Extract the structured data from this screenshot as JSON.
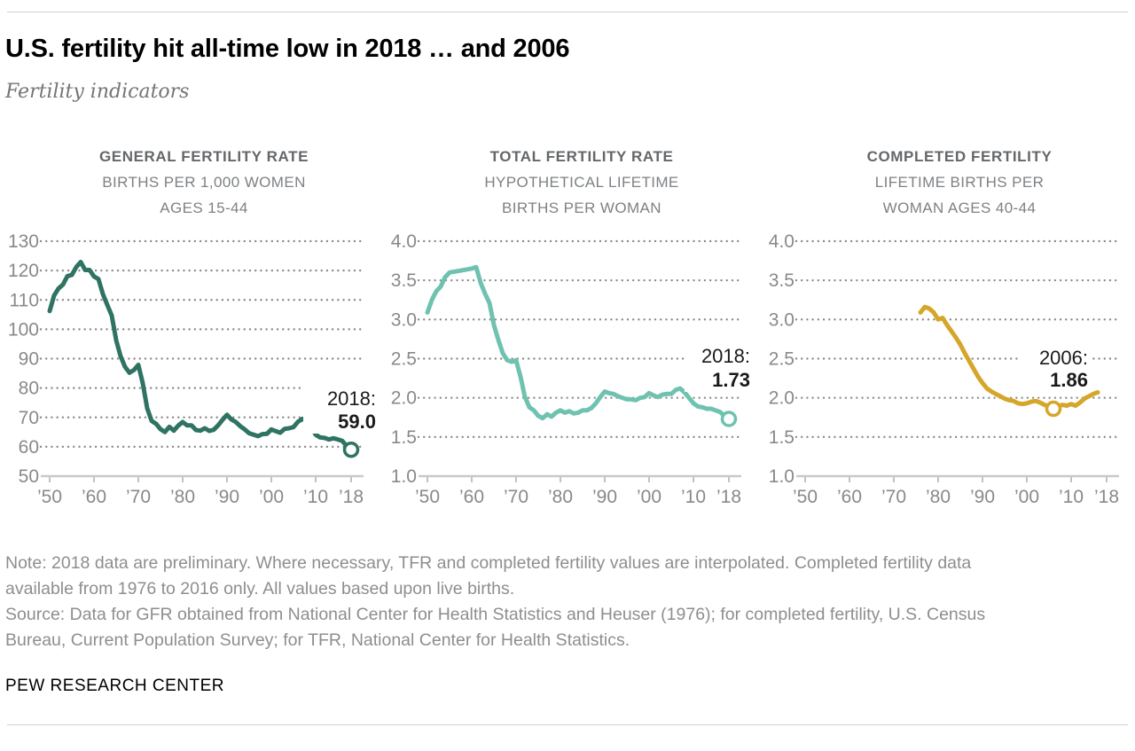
{
  "page": {
    "title": "U.S. fertility hit all-time low in 2018 … and 2006",
    "subtitle": "Fertility indicators",
    "note": "Note: 2018 data are preliminary. Where necessary, TFR and completed fertility values are interpolated. Completed fertility data available from 1976 to 2016 only. All values based upon live births.",
    "source": "Source: Data for GFR obtained from National Center for Health Statistics and Heuser (1976); for completed fertility, U.S. Census Bureau, Current Population Survey; for TFR, National Center for Health Statistics.",
    "footer": "PEW RESEARCH CENTER"
  },
  "colors": {
    "gfr_line": "#2F7363",
    "tfr_line": "#6FC2AF",
    "completed_line": "#D5A629",
    "gridline_dots": "#8a8a8a",
    "axis_line": "#c9c9c9",
    "tick_mark": "#c2c2c2",
    "tick_text": "#87898c",
    "annotation_text": "#1a1a1a"
  },
  "chart_data": [
    {
      "type": "line",
      "id": "gfr",
      "title_lines": [
        "GENERAL FERTILITY RATE",
        "BIRTHS PER 1,000 WOMEN",
        "AGES 15-44"
      ],
      "color": "#2F7363",
      "ylim": [
        50,
        130
      ],
      "grid": "dotted-horizontal",
      "legend": "none",
      "yticks": [
        {
          "v": 130,
          "label": "130"
        },
        {
          "v": 120,
          "label": "120"
        },
        {
          "v": 110,
          "label": "110"
        },
        {
          "v": 100,
          "label": "100"
        },
        {
          "v": 90,
          "label": "90"
        },
        {
          "v": 80,
          "label": "80"
        },
        {
          "v": 70,
          "label": "70"
        },
        {
          "v": 60,
          "label": "60"
        },
        {
          "v": 50,
          "label": "50"
        }
      ],
      "x_range": [
        1950,
        2018
      ],
      "xticks": [
        {
          "year": 1950,
          "label": "’50"
        },
        {
          "year": 1960,
          "label": "’60"
        },
        {
          "year": 1970,
          "label": "’70"
        },
        {
          "year": 1980,
          "label": "’80"
        },
        {
          "year": 1990,
          "label": "’90"
        },
        {
          "year": 2000,
          "label": "’00"
        },
        {
          "year": 2010,
          "label": "’10"
        },
        {
          "year": 2018,
          "label": "’18"
        }
      ],
      "x_start": 1950,
      "x_step": 1,
      "values": [
        106.2,
        111.5,
        113.9,
        115.2,
        118.1,
        118.5,
        121.2,
        122.9,
        120.2,
        120.2,
        118.0,
        117.1,
        112.0,
        108.3,
        104.7,
        96.3,
        90.8,
        87.2,
        85.2,
        86.1,
        87.9,
        81.6,
        73.1,
        68.8,
        67.8,
        66.0,
        65.0,
        66.8,
        65.5,
        67.2,
        68.4,
        67.3,
        67.3,
        65.7,
        65.5,
        66.3,
        65.4,
        65.8,
        67.3,
        69.2,
        70.9,
        69.3,
        68.4,
        67.0,
        65.9,
        64.6,
        64.1,
        63.6,
        64.3,
        64.4,
        65.9,
        65.3,
        64.8,
        66.1,
        66.3,
        66.7,
        68.5,
        69.5,
        68.6,
        66.7,
        64.1,
        63.2,
        63.0,
        62.5,
        62.9,
        62.5,
        62.0,
        60.3,
        59.0
      ],
      "annotation": {
        "line1": "2018:",
        "line2": "59.0",
        "marker_year": 2018,
        "marker_value": 59.0
      }
    },
    {
      "type": "line",
      "id": "tfr",
      "title_lines": [
        "TOTAL FERTILITY RATE",
        "HYPOTHETICAL LIFETIME",
        "BIRTHS PER WOMAN"
      ],
      "color": "#6FC2AF",
      "ylim": [
        1.0,
        4.0
      ],
      "grid": "dotted-horizontal",
      "legend": "none",
      "yticks": [
        {
          "v": 4.0,
          "label": "4.0"
        },
        {
          "v": 3.5,
          "label": "3.5"
        },
        {
          "v": 3.0,
          "label": "3.0"
        },
        {
          "v": 2.5,
          "label": "2.5"
        },
        {
          "v": 2.0,
          "label": "2.0"
        },
        {
          "v": 1.5,
          "label": "1.5"
        },
        {
          "v": 1.0,
          "label": "1.0"
        }
      ],
      "x_range": [
        1950,
        2018
      ],
      "xticks": [
        {
          "year": 1950,
          "label": "’50"
        },
        {
          "year": 1960,
          "label": "’60"
        },
        {
          "year": 1970,
          "label": "’70"
        },
        {
          "year": 1980,
          "label": "’80"
        },
        {
          "year": 1990,
          "label": "’90"
        },
        {
          "year": 2000,
          "label": "’00"
        },
        {
          "year": 2010,
          "label": "’10"
        },
        {
          "year": 2018,
          "label": "’18"
        }
      ],
      "x_start": 1950,
      "x_step": 1,
      "values": [
        3.09,
        3.25,
        3.36,
        3.42,
        3.54,
        3.6,
        3.61,
        3.62,
        3.63,
        3.64,
        3.65,
        3.67,
        3.47,
        3.33,
        3.21,
        2.93,
        2.74,
        2.57,
        2.48,
        2.46,
        2.48,
        2.27,
        2.01,
        1.88,
        1.84,
        1.77,
        1.74,
        1.79,
        1.76,
        1.81,
        1.84,
        1.81,
        1.83,
        1.8,
        1.81,
        1.84,
        1.84,
        1.87,
        1.93,
        2.01,
        2.08,
        2.06,
        2.05,
        2.02,
        2.0,
        1.98,
        1.98,
        1.97,
        2.0,
        2.01,
        2.06,
        2.03,
        2.01,
        2.04,
        2.05,
        2.05,
        2.1,
        2.12,
        2.07,
        2.0,
        1.93,
        1.89,
        1.88,
        1.86,
        1.86,
        1.84,
        1.82,
        1.77,
        1.73
      ],
      "annotation": {
        "line1": "2018:",
        "line2": "1.73",
        "marker_year": 2018,
        "marker_value": 1.73
      }
    },
    {
      "type": "line",
      "id": "completed",
      "title_lines": [
        "COMPLETED FERTILITY",
        "LIFETIME BIRTHS PER",
        "WOMAN AGES 40-44"
      ],
      "color": "#D5A629",
      "ylim": [
        1.0,
        4.0
      ],
      "grid": "dotted-horizontal",
      "legend": "none",
      "yticks": [
        {
          "v": 4.0,
          "label": "4.0"
        },
        {
          "v": 3.5,
          "label": "3.5"
        },
        {
          "v": 3.0,
          "label": "3.0"
        },
        {
          "v": 2.5,
          "label": "2.5"
        },
        {
          "v": 2.0,
          "label": "2.0"
        },
        {
          "v": 1.5,
          "label": "1.5"
        },
        {
          "v": 1.0,
          "label": "1.0"
        }
      ],
      "x_range": [
        1950,
        2018
      ],
      "xticks": [
        {
          "year": 1950,
          "label": "’50"
        },
        {
          "year": 1960,
          "label": "’60"
        },
        {
          "year": 1970,
          "label": "’70"
        },
        {
          "year": 1980,
          "label": "’80"
        },
        {
          "year": 1990,
          "label": "’90"
        },
        {
          "year": 2000,
          "label": "’00"
        },
        {
          "year": 2010,
          "label": "’10"
        },
        {
          "year": 2018,
          "label": "’18"
        }
      ],
      "x_start": 1976,
      "x_step": 1,
      "values": [
        3.09,
        3.16,
        3.14,
        3.09,
        3.0,
        3.02,
        2.93,
        2.85,
        2.77,
        2.68,
        2.57,
        2.47,
        2.37,
        2.27,
        2.19,
        2.12,
        2.08,
        2.05,
        2.02,
        1.99,
        1.97,
        1.96,
        1.93,
        1.92,
        1.93,
        1.95,
        1.96,
        1.94,
        1.91,
        1.89,
        1.86,
        1.89,
        1.91,
        1.9,
        1.92,
        1.9,
        1.94,
        1.99,
        2.02,
        2.05,
        2.07
      ],
      "annotation": {
        "line1": "2006:",
        "line2": "1.86",
        "marker_year": 2006,
        "marker_value": 1.86
      }
    }
  ]
}
